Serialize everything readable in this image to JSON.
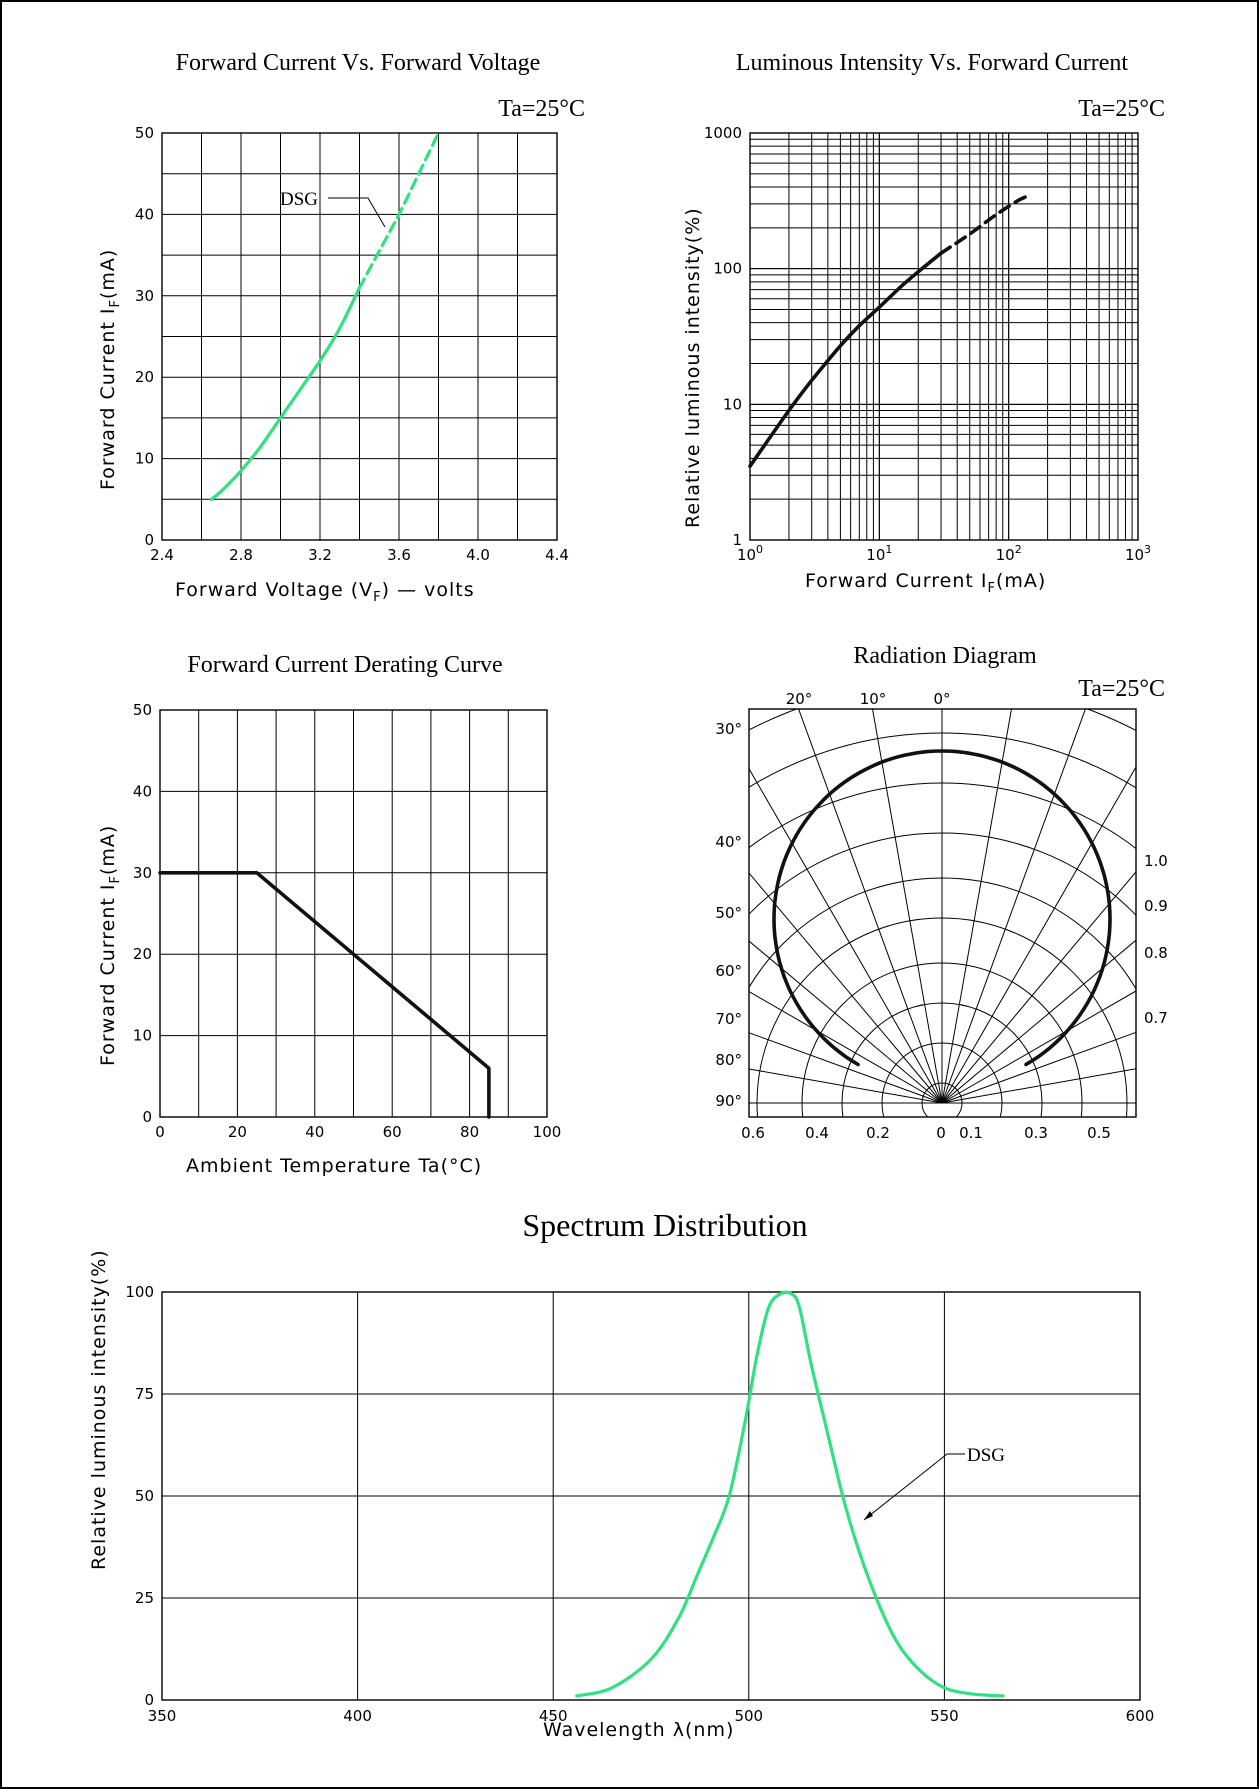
{
  "colors": {
    "green_curve": "#2fe27f",
    "black_curve": "#111111",
    "grid": "#000000"
  },
  "chart_data": [
    {
      "id": "vf",
      "type": "line",
      "title": "Forward Current Vs. Forward Voltage",
      "condition": "Ta=25°C",
      "xlabel": "Forward Voltage (V_F) — volts",
      "ylabel": "Forward Current I_F(mA)",
      "xlim": [
        2.4,
        4.4
      ],
      "ylim": [
        0,
        50
      ],
      "x_ticks": [
        "2.4",
        "2.8",
        "3.2",
        "3.6",
        "4.0",
        "4.4"
      ],
      "y_ticks": [
        "0",
        "10",
        "20",
        "30",
        "40",
        "50"
      ],
      "grid": true,
      "series": [
        {
          "name": "DSG",
          "color": "#2fe27f",
          "style": "solid",
          "x": [
            2.65,
            2.7,
            2.8,
            2.9,
            3.0,
            3.1,
            3.2,
            3.3,
            3.4
          ],
          "y": [
            5,
            6,
            8.5,
            11.5,
            15,
            18.5,
            22,
            26,
            31
          ]
        },
        {
          "name": "DSG",
          "color": "#2fe27f",
          "style": "dashed",
          "x": [
            3.4,
            3.5,
            3.6,
            3.7,
            3.8
          ],
          "y": [
            31,
            35.5,
            40,
            45,
            50
          ]
        }
      ],
      "annotation": "DSG"
    },
    {
      "id": "iv",
      "type": "line",
      "title": "Luminous Intensity Vs. Forward Current",
      "condition": "Ta=25°C",
      "xlabel": "Forward Current I_F(mA)",
      "ylabel": "Relative luminous intensity(%)",
      "xscale": "log",
      "yscale": "log",
      "xlim": [
        1,
        1000
      ],
      "ylim": [
        1,
        1000
      ],
      "x_ticks": [
        "10^0",
        "10^1",
        "10^2",
        "10^3"
      ],
      "y_ticks": [
        "1",
        "10",
        "100",
        "1000"
      ],
      "grid": true,
      "series": [
        {
          "color": "#111111",
          "style": "solid",
          "x": [
            1,
            2,
            3,
            5,
            7,
            10,
            15,
            20,
            30
          ],
          "y": [
            3.5,
            9,
            15,
            27,
            38,
            52,
            75,
            95,
            130
          ]
        },
        {
          "color": "#111111",
          "style": "dashed",
          "x": [
            30,
            50,
            80,
            120,
            150
          ],
          "y": [
            130,
            180,
            250,
            320,
            350
          ]
        }
      ]
    },
    {
      "id": "derate",
      "type": "line",
      "title": "Forward Current Derating Curve",
      "xlabel": "Ambient Temperature Ta(°C)",
      "ylabel": "Forward Current I_F(mA)",
      "xlim": [
        0,
        100
      ],
      "ylim": [
        0,
        50
      ],
      "x_ticks": [
        "0",
        "20",
        "40",
        "60",
        "80",
        "100"
      ],
      "y_ticks": [
        "0",
        "10",
        "20",
        "30",
        "40",
        "50"
      ],
      "grid": true,
      "series": [
        {
          "color": "#111111",
          "style": "solid",
          "x": [
            0,
            25,
            85,
            85
          ],
          "y": [
            30,
            30,
            6,
            0
          ]
        }
      ]
    },
    {
      "id": "radiation",
      "type": "polar",
      "title": "Radiation Diagram",
      "condition": "Ta=25°C",
      "top_angle_labels": [
        "20°",
        "10°",
        "0°"
      ],
      "left_angle_labels": [
        "30°",
        "40°",
        "50°",
        "60°",
        "70°",
        "80°",
        "90°"
      ],
      "right_labels": [
        "1.0",
        "0.9",
        "0.8",
        "0.7"
      ],
      "bottom_labels": [
        "0.6",
        "0.4",
        "0.2",
        "0",
        "0.1",
        "0.3",
        "0.5"
      ],
      "pattern": {
        "shape": "circle",
        "relative_radius": 1.0
      }
    },
    {
      "id": "spectrum",
      "type": "line",
      "title": "Spectrum Distribution",
      "xlabel": "Wavelength λ(nm)",
      "ylabel": "Relative luminous intensity(%)",
      "xlim": [
        350,
        600
      ],
      "ylim": [
        0,
        100
      ],
      "x_ticks": [
        "350",
        "400",
        "450",
        "500",
        "550",
        "600"
      ],
      "y_ticks": [
        "0",
        "25",
        "50",
        "75",
        "100"
      ],
      "grid": true,
      "series": [
        {
          "name": "DSG",
          "color": "#2fe27f",
          "style": "solid",
          "x": [
            456,
            465,
            475,
            482,
            487,
            491,
            495,
            499,
            502,
            505,
            508,
            511,
            513,
            516,
            520,
            524,
            528,
            533,
            538,
            544,
            550,
            557,
            565
          ],
          "y": [
            1,
            3,
            10,
            20,
            31,
            40,
            50,
            68,
            84,
            96,
            99.5,
            99.5,
            96,
            82,
            66,
            50,
            37,
            24,
            14,
            7,
            3,
            1.5,
            1
          ]
        }
      ],
      "annotation": "DSG"
    }
  ]
}
